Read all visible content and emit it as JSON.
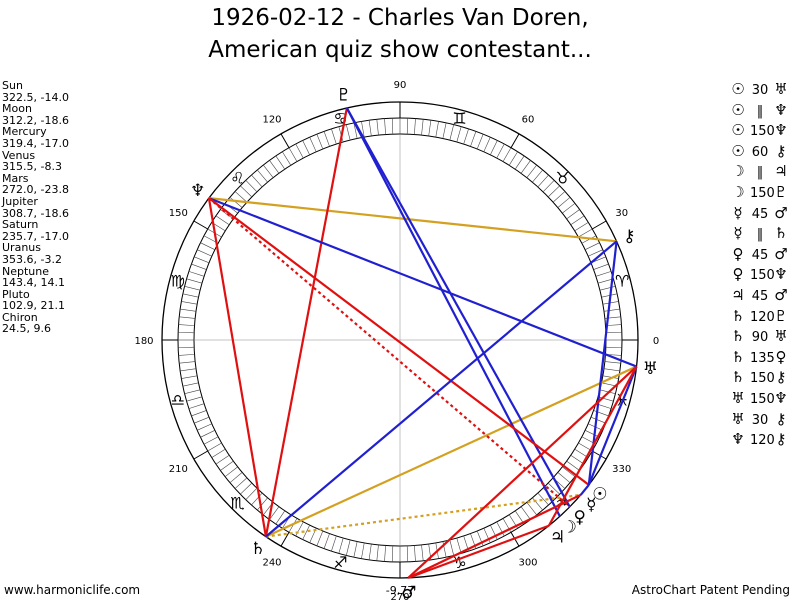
{
  "title": {
    "line1": "1926-02-12 - Charles Van Doren,",
    "line2": "American quiz show contestant..."
  },
  "planets": [
    {
      "name": "Sun",
      "coords": "322.5, -14.0",
      "glyph": "☉",
      "lon": 322.5
    },
    {
      "name": "Moon",
      "coords": "312.2, -18.6",
      "glyph": "☽",
      "lon": 312.2
    },
    {
      "name": "Mercury",
      "coords": "319.4, -17.0",
      "glyph": "☿",
      "lon": 319.4
    },
    {
      "name": "Venus",
      "coords": "315.5, -8.3",
      "glyph": "♀",
      "lon": 315.5
    },
    {
      "name": "Mars",
      "coords": "272.0, -23.8",
      "glyph": "♂",
      "lon": 272.0
    },
    {
      "name": "Jupiter",
      "coords": "308.7, -18.6",
      "glyph": "♃",
      "lon": 308.7
    },
    {
      "name": "Saturn",
      "coords": "235.7, -17.0",
      "glyph": "♄",
      "lon": 235.7
    },
    {
      "name": "Uranus",
      "coords": "353.6, -3.2",
      "glyph": "♅",
      "lon": 353.6
    },
    {
      "name": "Neptune",
      "coords": "143.4, 14.1",
      "glyph": "♆",
      "lon": 143.4
    },
    {
      "name": "Pluto",
      "coords": "102.9, 21.1",
      "glyph": "♇",
      "lon": 102.9
    },
    {
      "name": "Chiron",
      "coords": "24.5, 9.6",
      "glyph": "⚷",
      "lon": 24.5
    }
  ],
  "aspects": [
    {
      "p1": "Sun",
      "g1": "☉",
      "angle": "30",
      "g2": "♅",
      "style": "plain"
    },
    {
      "p1": "Sun",
      "g1": "☉",
      "angle": "‖",
      "g2": "♆",
      "style": "plain"
    },
    {
      "p1": "Sun",
      "g1": "☉",
      "angle": "150",
      "g2": "♆",
      "style": "plain"
    },
    {
      "p1": "Sun",
      "g1": "☉",
      "angle": "60",
      "g2": "⚷",
      "style": "plain"
    },
    {
      "p1": "Moon",
      "g1": "☽",
      "angle": "‖",
      "g2": "♃",
      "style": "plain"
    },
    {
      "p1": "Moon",
      "g1": "☽",
      "angle": "150",
      "g2": "♇",
      "style": "plain"
    },
    {
      "p1": "Mercury",
      "g1": "☿",
      "angle": "45",
      "g2": "♂",
      "style": "plain"
    },
    {
      "p1": "Mercury",
      "g1": "☿",
      "angle": "‖",
      "g2": "♄",
      "style": "plain"
    },
    {
      "p1": "Venus",
      "g1": "♀",
      "angle": "45",
      "g2": "♂",
      "style": "plain"
    },
    {
      "p1": "Venus",
      "g1": "♀",
      "angle": "150",
      "g2": "♆",
      "style": "plain"
    },
    {
      "p1": "Jupiter",
      "g1": "♃",
      "angle": "45",
      "g2": "♂",
      "style": "plain"
    },
    {
      "p1": "Saturn",
      "g1": "♄",
      "angle": "120",
      "g2": "♇",
      "style": "plain"
    },
    {
      "p1": "Saturn",
      "g1": "♄",
      "angle": "90",
      "g2": "♅",
      "style": "plain"
    },
    {
      "p1": "Saturn",
      "g1": "♄",
      "angle": "135",
      "g2": "♀",
      "style": "plain"
    },
    {
      "p1": "Saturn",
      "g1": "♄",
      "angle": "150",
      "g2": "⚷",
      "style": "plain"
    },
    {
      "p1": "Uranus",
      "g1": "♅",
      "angle": "150",
      "g2": "♆",
      "style": "plain"
    },
    {
      "p1": "Uranus",
      "g1": "♅",
      "angle": "30",
      "g2": "⚷",
      "style": "plain"
    },
    {
      "p1": "Neptune",
      "g1": "♆",
      "angle": "120",
      "g2": "⚷",
      "style": "plain"
    }
  ],
  "chart_data": {
    "type": "astrological-wheel",
    "degree_labels": [
      "0",
      "30",
      "60",
      "90",
      "120",
      "150",
      "180",
      "210",
      "240",
      "270",
      "300",
      "330"
    ],
    "bottom_label": "-9,77",
    "signs": [
      {
        "name": "Aries",
        "glyph": "♈"
      },
      {
        "name": "Taurus",
        "glyph": "♉"
      },
      {
        "name": "Gemini",
        "glyph": "♊"
      },
      {
        "name": "Cancer",
        "glyph": "♋"
      },
      {
        "name": "Leo",
        "glyph": "♌"
      },
      {
        "name": "Virgo",
        "glyph": "♍"
      },
      {
        "name": "Libra",
        "glyph": "♎"
      },
      {
        "name": "Scorpio",
        "glyph": "♏"
      },
      {
        "name": "Sagittarius",
        "glyph": "♐"
      },
      {
        "name": "Capricorn",
        "glyph": "♑"
      },
      {
        "name": "Aquarius",
        "glyph": "♒"
      },
      {
        "name": "Pisces",
        "glyph": "♓"
      }
    ],
    "lines": [
      {
        "from": "Chiron",
        "to": "Neptune",
        "color": "#d4a020",
        "dash": false
      },
      {
        "from": "Uranus",
        "to": "Saturn",
        "color": "#d4a020",
        "dash": false
      },
      {
        "from": "Saturn",
        "to": "Mercury",
        "color": "#d4a020",
        "dash": true
      },
      {
        "from": "Pluto",
        "to": "Saturn",
        "color": "#e01010",
        "dash": false
      },
      {
        "from": "Pluto",
        "to": "Moon",
        "color": "#2020d0",
        "dash": false
      },
      {
        "from": "Pluto",
        "to": "Venus",
        "color": "#2020d0",
        "dash": false
      },
      {
        "from": "Neptune",
        "to": "Uranus",
        "color": "#2020d0",
        "dash": false
      },
      {
        "from": "Neptune",
        "to": "Sun",
        "color": "#e01010",
        "dash": false
      },
      {
        "from": "Neptune",
        "to": "Venus",
        "color": "#e01010",
        "dash": true
      },
      {
        "from": "Neptune",
        "to": "Saturn",
        "color": "#e01010",
        "dash": false
      },
      {
        "from": "Chiron",
        "to": "Saturn",
        "color": "#2020d0",
        "dash": false
      },
      {
        "from": "Chiron",
        "to": "Sun",
        "color": "#2020d0",
        "dash": false
      },
      {
        "from": "Uranus",
        "to": "Sun",
        "color": "#2020d0",
        "dash": false
      },
      {
        "from": "Uranus",
        "to": "Mars",
        "color": "#e01010",
        "dash": false
      },
      {
        "from": "Mars",
        "to": "Jupiter",
        "color": "#e01010",
        "dash": false
      },
      {
        "from": "Mars",
        "to": "Mercury",
        "color": "#e01010",
        "dash": false
      },
      {
        "from": "Jupiter",
        "to": "Uranus",
        "color": "#e01010",
        "dash": false
      },
      {
        "from": "Sun",
        "to": "Mercury",
        "color": "#2020d0",
        "dash": false
      }
    ]
  },
  "footer": {
    "left": "www.harmoniclife.com",
    "right": "AstroChart Patent Pending"
  }
}
